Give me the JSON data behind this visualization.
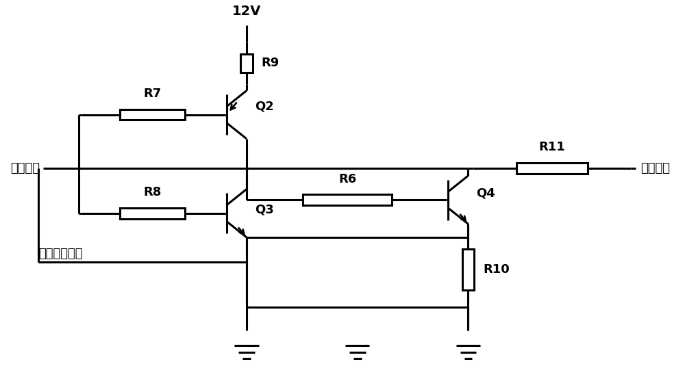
{
  "bg_color": "#ffffff",
  "line_color": "#000000",
  "lw": 2.2,
  "fs": 13,
  "labels": {
    "vcc": "12V",
    "ctrl": "控制信号",
    "sw": "开关信号",
    "limit": "限流启动电路"
  },
  "R9": "R9",
  "R7": "R7",
  "R8": "R8",
  "R6": "R6",
  "R10": "R10",
  "R11": "R11",
  "Q2": "Q2",
  "Q3": "Q3",
  "Q4": "Q4"
}
